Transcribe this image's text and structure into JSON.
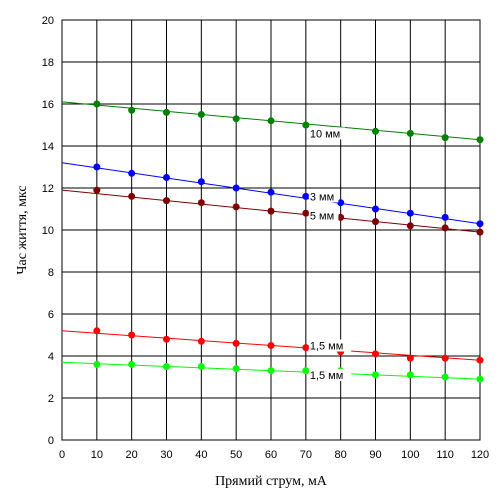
{
  "chart_data": {
    "type": "line",
    "title": "",
    "xlabel": "Прямий струм, мА",
    "ylabel": "Час життя, мкс",
    "xlim": [
      0,
      120
    ],
    "ylim": [
      0,
      20
    ],
    "xticks": [
      "0",
      "10",
      "20",
      "30",
      "40",
      "50",
      "60",
      "70",
      "80",
      "90",
      "100",
      "110",
      "120"
    ],
    "yticks": [
      "0",
      "2",
      "4",
      "6",
      "8",
      "10",
      "12",
      "14",
      "16",
      "18",
      "20"
    ],
    "grid": true,
    "legend": "none",
    "series": [
      {
        "name": "10 мм",
        "color": "#008000",
        "fit": [
          [
            0,
            16.1
          ],
          [
            120,
            14.3
          ]
        ],
        "points": [
          [
            10,
            16.0
          ],
          [
            20,
            15.7
          ],
          [
            30,
            15.6
          ],
          [
            40,
            15.5
          ],
          [
            50,
            15.3
          ],
          [
            60,
            15.2
          ],
          [
            70,
            15.0
          ],
          [
            90,
            14.7
          ],
          [
            100,
            14.6
          ],
          [
            110,
            14.4
          ],
          [
            120,
            14.3
          ]
        ],
        "label_at": [
          70,
          14.6
        ]
      },
      {
        "name": "3 мм",
        "color": "#0000ff",
        "fit": [
          [
            0,
            13.2
          ],
          [
            120,
            10.3
          ]
        ],
        "points": [
          [
            10,
            13.0
          ],
          [
            20,
            12.7
          ],
          [
            30,
            12.5
          ],
          [
            40,
            12.3
          ],
          [
            50,
            12.0
          ],
          [
            60,
            11.8
          ],
          [
            70,
            11.6
          ],
          [
            80,
            11.3
          ],
          [
            90,
            11.0
          ],
          [
            100,
            10.8
          ],
          [
            110,
            10.6
          ],
          [
            120,
            10.3
          ]
        ],
        "label_at": [
          70,
          11.6
        ]
      },
      {
        "name": "5 мм",
        "color": "#800000",
        "fit": [
          [
            0,
            11.9
          ],
          [
            120,
            9.9
          ]
        ],
        "points": [
          [
            10,
            11.9
          ],
          [
            20,
            11.6
          ],
          [
            30,
            11.4
          ],
          [
            40,
            11.3
          ],
          [
            50,
            11.1
          ],
          [
            60,
            10.9
          ],
          [
            70,
            10.8
          ],
          [
            80,
            10.6
          ],
          [
            90,
            10.4
          ],
          [
            100,
            10.2
          ],
          [
            110,
            10.1
          ],
          [
            120,
            9.9
          ]
        ],
        "label_at": [
          70,
          10.7
        ]
      },
      {
        "name": "1,5 мм",
        "color": "#ff0000",
        "fit": [
          [
            0,
            5.2
          ],
          [
            120,
            3.8
          ]
        ],
        "points": [
          [
            10,
            5.2
          ],
          [
            20,
            5.0
          ],
          [
            30,
            4.8
          ],
          [
            40,
            4.7
          ],
          [
            50,
            4.6
          ],
          [
            60,
            4.5
          ],
          [
            70,
            4.4
          ],
          [
            80,
            4.2
          ],
          [
            90,
            4.1
          ],
          [
            100,
            3.9
          ],
          [
            110,
            3.9
          ],
          [
            120,
            3.8
          ]
        ],
        "label_at": [
          70,
          4.5
        ]
      },
      {
        "name": "1,5 мм",
        "color": "#00ff00",
        "fit": [
          [
            0,
            3.7
          ],
          [
            120,
            2.9
          ]
        ],
        "points": [
          [
            10,
            3.6
          ],
          [
            20,
            3.6
          ],
          [
            30,
            3.5
          ],
          [
            40,
            3.5
          ],
          [
            50,
            3.4
          ],
          [
            60,
            3.3
          ],
          [
            70,
            3.3
          ],
          [
            80,
            3.3
          ],
          [
            90,
            3.1
          ],
          [
            100,
            3.1
          ],
          [
            110,
            3.0
          ],
          [
            120,
            2.9
          ]
        ],
        "label_at": [
          70,
          3.1
        ]
      }
    ]
  }
}
